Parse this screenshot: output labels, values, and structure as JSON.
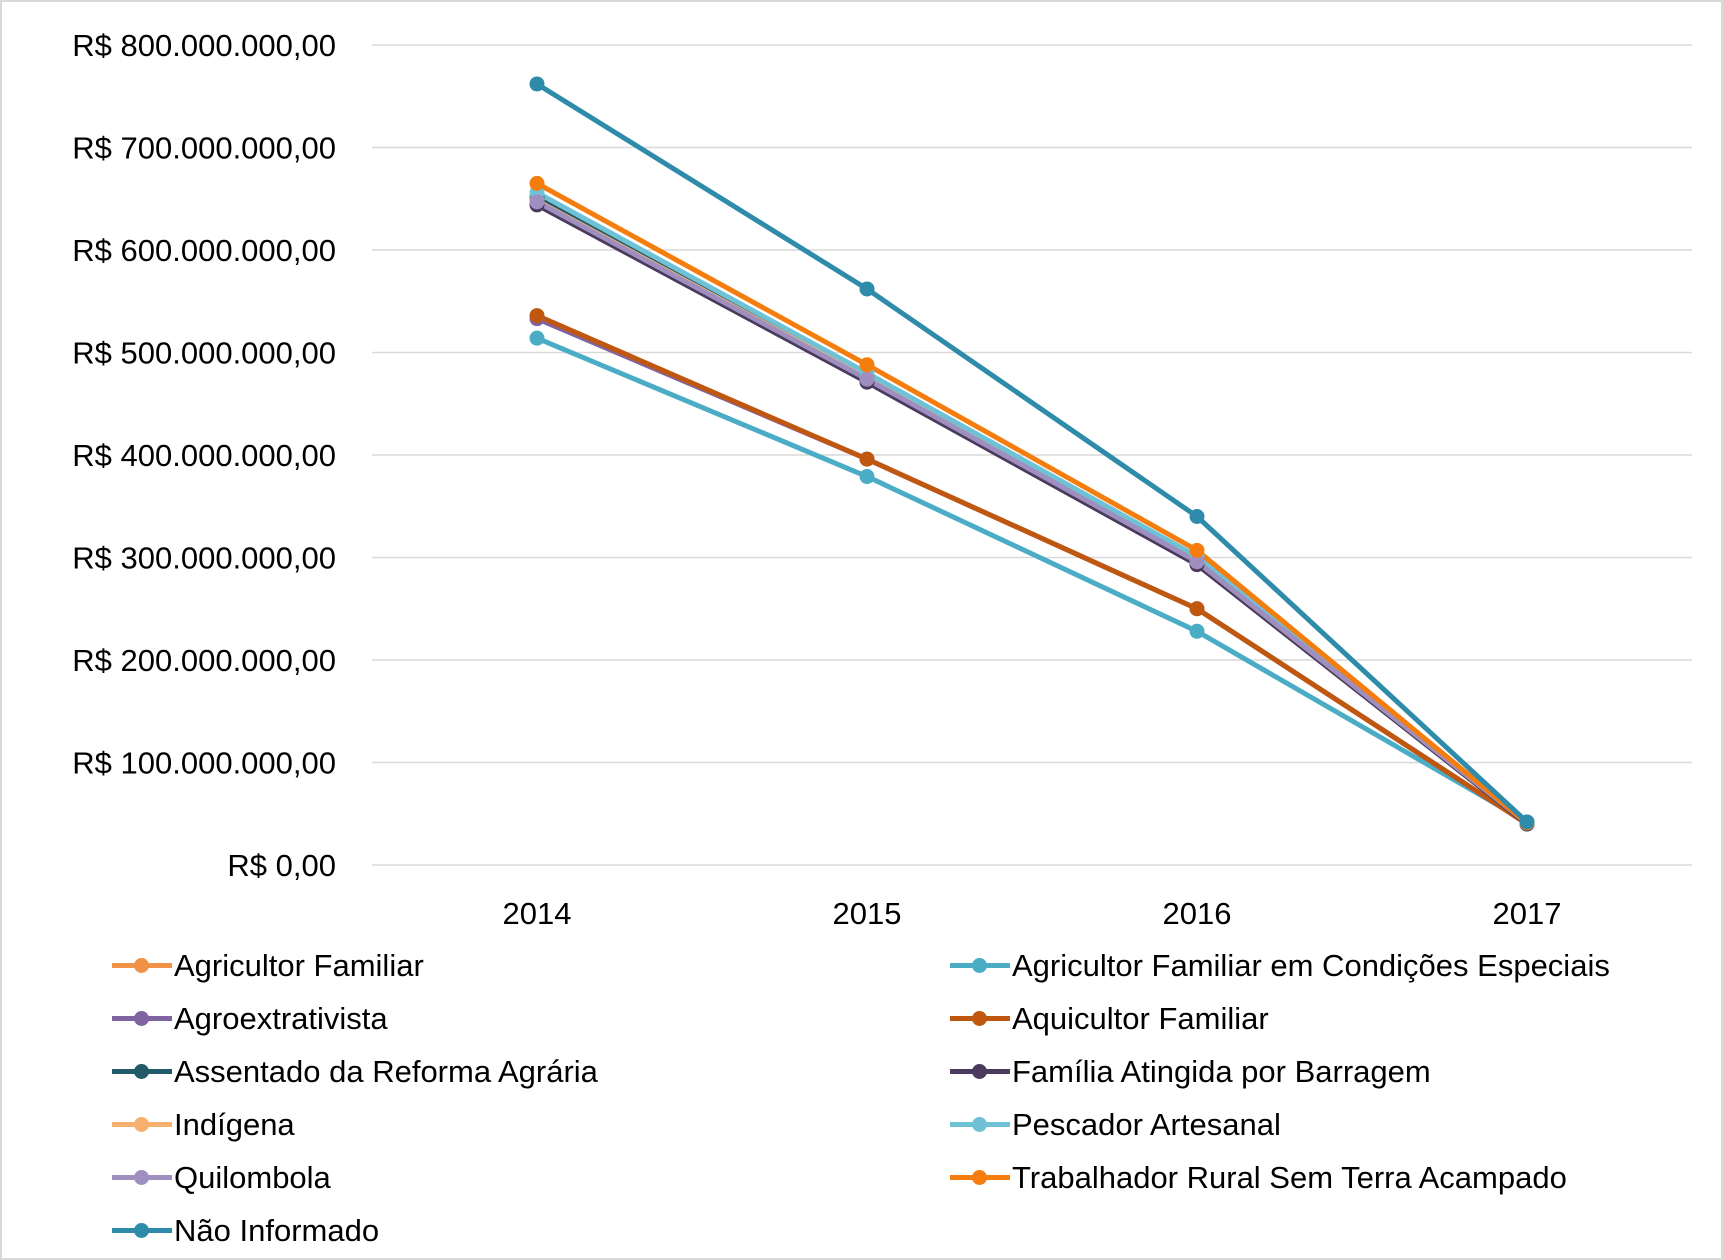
{
  "chart_data": {
    "type": "line",
    "title": "",
    "xlabel": "",
    "ylabel": "",
    "categories": [
      "2014",
      "2015",
      "2016",
      "2017"
    ],
    "ylim": [
      0,
      800000000
    ],
    "y_ticks": [
      "R$ 0,00",
      "R$ 100.000.000,00",
      "R$ 200.000.000,00",
      "R$ 300.000.000,00",
      "R$ 400.000.000,00",
      "R$ 500.000.000,00",
      "R$ 600.000.000,00",
      "R$ 700.000.000,00",
      "R$ 800.000.000,00"
    ],
    "y_tick_values": [
      0,
      100000000,
      200000000,
      300000000,
      400000000,
      500000000,
      600000000,
      700000000,
      800000000
    ],
    "grid": "horizontal",
    "legend_position": "bottom",
    "series": [
      {
        "name": "Agricultor Familiar",
        "color": "#F09347",
        "values": [
          645000000,
          474000000,
          296000000,
          41000000
        ]
      },
      {
        "name": "Agricultor Familiar em Condições Especiais",
        "color": "#4BACC6",
        "values": [
          514000000,
          379000000,
          228000000,
          42000000
        ]
      },
      {
        "name": "Agroextrativista",
        "color": "#8064A2",
        "values": [
          533000000,
          396000000,
          250000000,
          40000000
        ]
      },
      {
        "name": "Aquicultor Familiar",
        "color": "#C0570F",
        "values": [
          536000000,
          396000000,
          250000000,
          40000000
        ]
      },
      {
        "name": "Assentado da Reforma Agrária",
        "color": "#215A69",
        "values": [
          651000000,
          476000000,
          298000000,
          40000000
        ]
      },
      {
        "name": "Família Atingida por Barragem",
        "color": "#4A3A5E",
        "values": [
          644000000,
          471000000,
          293000000,
          40000000
        ]
      },
      {
        "name": "Indígena",
        "color": "#F7B06E",
        "values": [
          648000000,
          475000000,
          296000000,
          41000000
        ]
      },
      {
        "name": "Pescador Artesanal",
        "color": "#6FC2D6",
        "values": [
          656000000,
          480000000,
          301000000,
          41000000
        ]
      },
      {
        "name": "Quilombola",
        "color": "#9F8FC0",
        "values": [
          647000000,
          474000000,
          296000000,
          41000000
        ]
      },
      {
        "name": "Trabalhador Rural Sem Terra Acampado",
        "color": "#F57D0E",
        "values": [
          665000000,
          488000000,
          307000000,
          41000000
        ]
      },
      {
        "name": "Não Informado",
        "color": "#2E8BAA",
        "values": [
          762000000,
          562000000,
          340000000,
          42000000
        ]
      }
    ]
  }
}
